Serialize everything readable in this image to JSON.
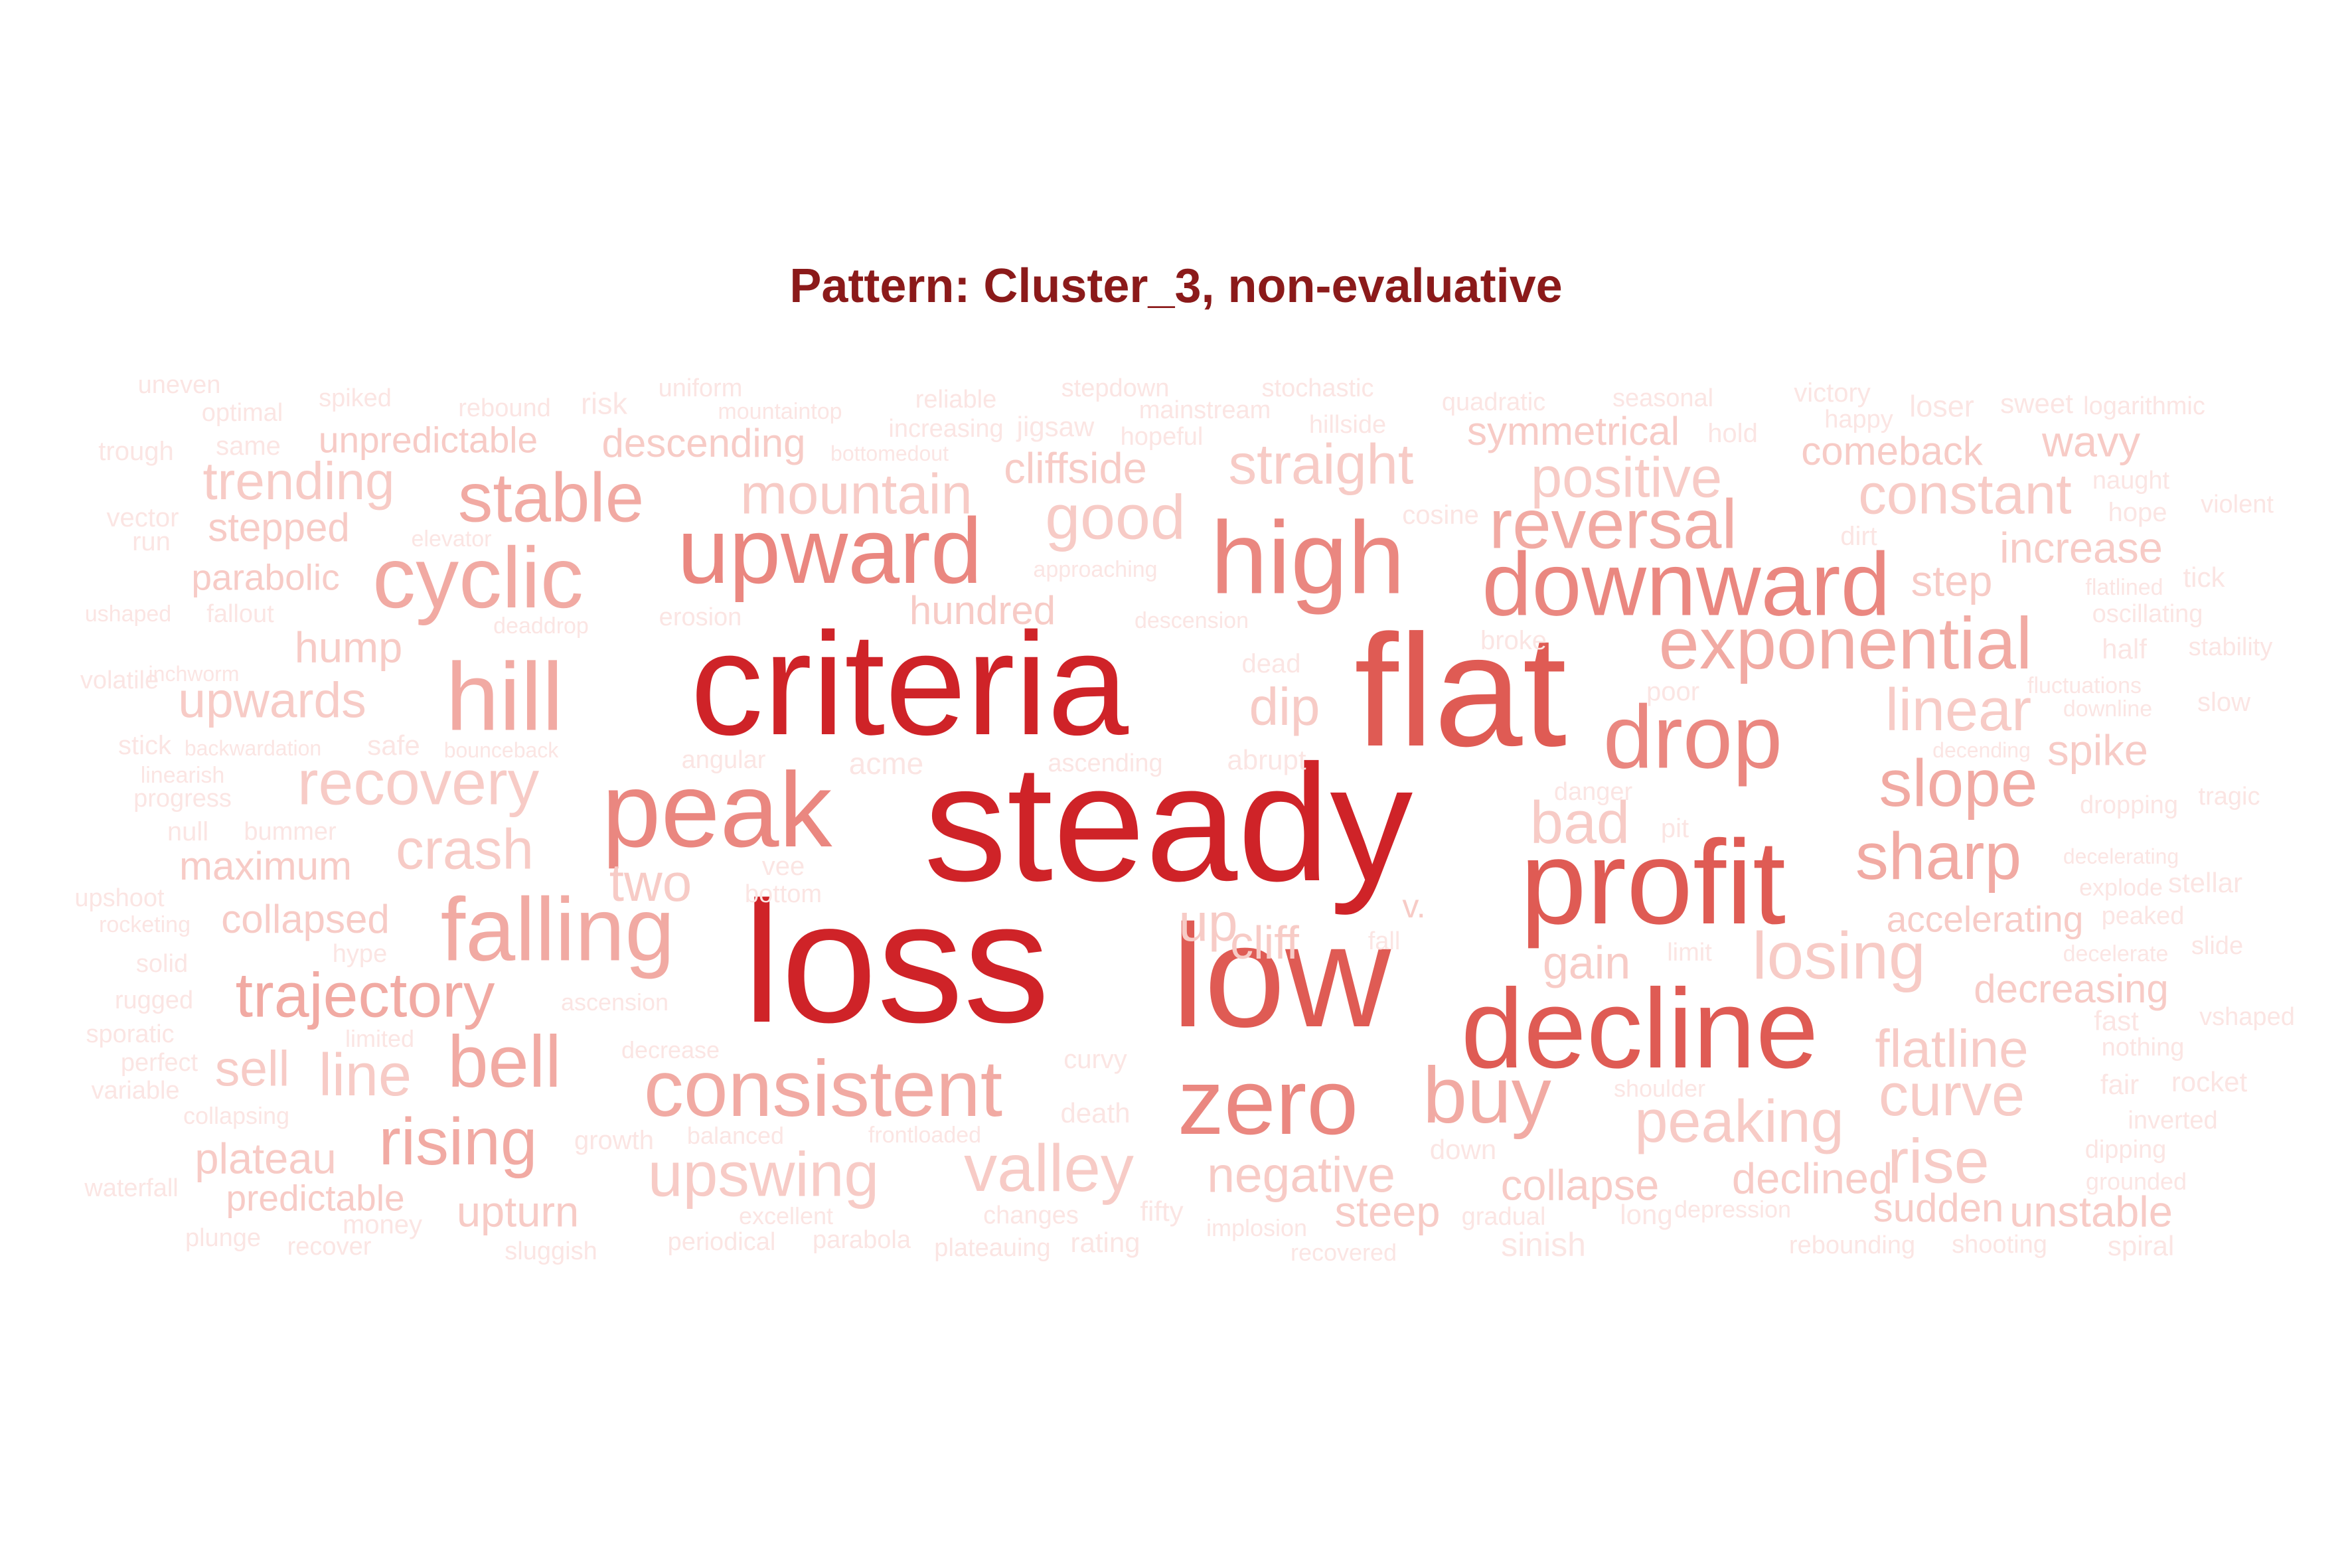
{
  "title": "Pattern: Cluster_3, non-evaluative",
  "colors": {
    "title": "#8b1a1a",
    "ramp": [
      "#fbe5e3",
      "#f7cbc6",
      "#f1aaa3",
      "#ea8780",
      "#df5b54",
      "#cf2328"
    ]
  },
  "words": [
    {
      "text": "steady",
      "w": 100
    },
    {
      "text": "loss",
      "w": 95
    },
    {
      "text": "criteria",
      "w": 92
    },
    {
      "text": "flat",
      "w": 88
    },
    {
      "text": "low",
      "w": 80
    },
    {
      "text": "profit",
      "w": 72
    },
    {
      "text": "decline",
      "w": 72
    },
    {
      "text": "high",
      "w": 66
    },
    {
      "text": "downward",
      "w": 64
    },
    {
      "text": "drop",
      "w": 62
    },
    {
      "text": "peak",
      "w": 62
    },
    {
      "text": "upward",
      "w": 58
    },
    {
      "text": "zero",
      "w": 56
    },
    {
      "text": "falling",
      "w": 54
    },
    {
      "text": "hill",
      "w": 50
    },
    {
      "text": "consistent",
      "w": 48
    },
    {
      "text": "cyclic",
      "w": 48
    },
    {
      "text": "buy",
      "w": 46
    },
    {
      "text": "exponential",
      "w": 44
    },
    {
      "text": "reversal",
      "w": 42
    },
    {
      "text": "bell",
      "w": 42
    },
    {
      "text": "trajectory",
      "w": 40
    },
    {
      "text": "slope",
      "w": 40
    },
    {
      "text": "rising",
      "w": 40
    },
    {
      "text": "sharp",
      "w": 40
    },
    {
      "text": "stable",
      "w": 40
    },
    {
      "text": "upswing",
      "w": 38
    },
    {
      "text": "valley",
      "w": 38
    },
    {
      "text": "losing",
      "w": 38
    },
    {
      "text": "peaking",
      "w": 36
    },
    {
      "text": "recovery",
      "w": 36
    },
    {
      "text": "curve",
      "w": 36
    },
    {
      "text": "rise",
      "w": 36
    },
    {
      "text": "linear",
      "w": 36
    },
    {
      "text": "bad",
      "w": 36
    },
    {
      "text": "straight",
      "w": 34
    },
    {
      "text": "good",
      "w": 34
    },
    {
      "text": "constant",
      "w": 34
    },
    {
      "text": "mountain",
      "w": 34
    },
    {
      "text": "flatline",
      "w": 34
    },
    {
      "text": "crash",
      "w": 34
    },
    {
      "text": "line",
      "w": 34
    },
    {
      "text": "positive",
      "w": 32
    },
    {
      "text": "negative",
      "w": 32
    },
    {
      "text": "trending",
      "w": 30
    },
    {
      "text": "dip",
      "w": 30
    },
    {
      "text": "cliff",
      "w": 30
    },
    {
      "text": "upwards",
      "w": 30
    },
    {
      "text": "two",
      "w": 30
    },
    {
      "text": "up",
      "w": 30
    },
    {
      "text": "sell",
      "w": 30
    },
    {
      "text": "gain",
      "w": 30
    },
    {
      "text": "collapse",
      "w": 28
    },
    {
      "text": "steep",
      "w": 28
    },
    {
      "text": "declined",
      "w": 28
    },
    {
      "text": "plateau",
      "w": 28
    },
    {
      "text": "upturn",
      "w": 28
    },
    {
      "text": "wavy",
      "w": 28
    },
    {
      "text": "comeback",
      "w": 28
    },
    {
      "text": "increase",
      "w": 28
    },
    {
      "text": "spike",
      "w": 28
    },
    {
      "text": "step",
      "w": 28
    },
    {
      "text": "hump",
      "w": 28
    },
    {
      "text": "unstable",
      "w": 28
    },
    {
      "text": "sudden",
      "w": 28
    },
    {
      "text": "decreasing",
      "w": 28
    },
    {
      "text": "hundred",
      "w": 28
    },
    {
      "text": "descending",
      "w": 28
    },
    {
      "text": "symmetrical",
      "w": 28
    },
    {
      "text": "cliffside",
      "w": 28
    },
    {
      "text": "stepped",
      "w": 28
    },
    {
      "text": "maximum",
      "w": 28
    },
    {
      "text": "collapsed",
      "w": 28
    },
    {
      "text": "accelerating",
      "w": 26
    },
    {
      "text": "predictable",
      "w": 26
    },
    {
      "text": "unpredictable",
      "w": 26
    },
    {
      "text": "parabolic",
      "w": 26
    },
    {
      "text": "v.",
      "w": 26
    },
    {
      "text": "sinish",
      "w": 22
    },
    {
      "text": "uneven",
      "w": 20
    },
    {
      "text": "optimal",
      "w": 20
    },
    {
      "text": "spiked",
      "w": 20
    },
    {
      "text": "rebound",
      "w": 20
    },
    {
      "text": "risk",
      "w": 22
    },
    {
      "text": "uniform",
      "w": 20
    },
    {
      "text": "mountaintop",
      "w": 18
    },
    {
      "text": "reliable",
      "w": 20
    },
    {
      "text": "stepdown",
      "w": 20
    },
    {
      "text": "stochastic",
      "w": 20
    },
    {
      "text": "mainstream",
      "w": 20
    },
    {
      "text": "hillside",
      "w": 20
    },
    {
      "text": "quadratic",
      "w": 20
    },
    {
      "text": "seasonal",
      "w": 20
    },
    {
      "text": "victory",
      "w": 20
    },
    {
      "text": "happy",
      "w": 20
    },
    {
      "text": "loser",
      "w": 22
    },
    {
      "text": "sweet",
      "w": 22
    },
    {
      "text": "logarithmic",
      "w": 20
    },
    {
      "text": "trough",
      "w": 20
    },
    {
      "text": "same",
      "w": 20
    },
    {
      "text": "increasing",
      "w": 20
    },
    {
      "text": "bottomedout",
      "w": 18
    },
    {
      "text": "jigsaw",
      "w": 22
    },
    {
      "text": "hopeful",
      "w": 20
    },
    {
      "text": "hold",
      "w": 20
    },
    {
      "text": "naught",
      "w": 20
    },
    {
      "text": "vector",
      "w": 20
    },
    {
      "text": "run",
      "w": 20
    },
    {
      "text": "elevator",
      "w": 18
    },
    {
      "text": "cosine",
      "w": 20
    },
    {
      "text": "dirt",
      "w": 20
    },
    {
      "text": "hope",
      "w": 20
    },
    {
      "text": "violent",
      "w": 20
    },
    {
      "text": "approaching",
      "w": 18
    },
    {
      "text": "flatlined",
      "w": 18
    },
    {
      "text": "tick",
      "w": 20
    },
    {
      "text": "ushaped",
      "w": 18
    },
    {
      "text": "fallout",
      "w": 20
    },
    {
      "text": "deaddrop",
      "w": 18
    },
    {
      "text": "erosion",
      "w": 20
    },
    {
      "text": "descension",
      "w": 18
    },
    {
      "text": "oscillating",
      "w": 20
    },
    {
      "text": "inchworm",
      "w": 18
    },
    {
      "text": "volatile",
      "w": 20
    },
    {
      "text": "broke",
      "w": 20
    },
    {
      "text": "dead",
      "w": 20
    },
    {
      "text": "half",
      "w": 22
    },
    {
      "text": "stability",
      "w": 20
    },
    {
      "text": "fluctuations",
      "w": 18
    },
    {
      "text": "poor",
      "w": 20
    },
    {
      "text": "downline",
      "w": 18
    },
    {
      "text": "slow",
      "w": 20
    },
    {
      "text": "stick",
      "w": 20
    },
    {
      "text": "backwardation",
      "w": 18
    },
    {
      "text": "safe",
      "w": 22
    },
    {
      "text": "bounceback",
      "w": 18
    },
    {
      "text": "ascending",
      "w": 20
    },
    {
      "text": "decending",
      "w": 18
    },
    {
      "text": "linearish",
      "w": 18
    },
    {
      "text": "angular",
      "w": 20
    },
    {
      "text": "acme",
      "w": 22
    },
    {
      "text": "abrupt",
      "w": 22
    },
    {
      "text": "progress",
      "w": 20
    },
    {
      "text": "danger",
      "w": 20
    },
    {
      "text": "tragic",
      "w": 20
    },
    {
      "text": "null",
      "w": 20
    },
    {
      "text": "bummer",
      "w": 20
    },
    {
      "text": "pit",
      "w": 20
    },
    {
      "text": "dropping",
      "w": 20
    },
    {
      "text": "vee",
      "w": 20
    },
    {
      "text": "decelerating",
      "w": 18
    },
    {
      "text": "upshoot",
      "w": 20
    },
    {
      "text": "bottom",
      "w": 20
    },
    {
      "text": "explode",
      "w": 20
    },
    {
      "text": "stellar",
      "w": 20
    },
    {
      "text": "rocketing",
      "w": 18
    },
    {
      "text": "peaked",
      "w": 20
    },
    {
      "text": "solid",
      "w": 20
    },
    {
      "text": "hype",
      "w": 20
    },
    {
      "text": "fall",
      "w": 20
    },
    {
      "text": "limit",
      "w": 20
    },
    {
      "text": "decelerate",
      "w": 18
    },
    {
      "text": "slide",
      "w": 20
    },
    {
      "text": "rugged",
      "w": 20
    },
    {
      "text": "ascension",
      "w": 20
    },
    {
      "text": "fast",
      "w": 22
    },
    {
      "text": "sporatic",
      "w": 20
    },
    {
      "text": "limited",
      "w": 20
    },
    {
      "text": "decrease",
      "w": 20
    },
    {
      "text": "vshaped",
      "w": 20
    },
    {
      "text": "nothing",
      "w": 20
    },
    {
      "text": "perfect",
      "w": 20
    },
    {
      "text": "curvy",
      "w": 22
    },
    {
      "text": "variable",
      "w": 20
    },
    {
      "text": "shoulder",
      "w": 20
    },
    {
      "text": "fair",
      "w": 22
    },
    {
      "text": "rocket",
      "w": 22
    },
    {
      "text": "collapsing",
      "w": 20
    },
    {
      "text": "balanced",
      "w": 20
    },
    {
      "text": "frontloaded",
      "w": 18
    },
    {
      "text": "death",
      "w": 22
    },
    {
      "text": "inverted",
      "w": 20
    },
    {
      "text": "growth",
      "w": 22
    },
    {
      "text": "down",
      "w": 22
    },
    {
      "text": "dipping",
      "w": 20
    },
    {
      "text": "waterfall",
      "w": 20
    },
    {
      "text": "long",
      "w": 22
    },
    {
      "text": "grounded",
      "w": 20
    },
    {
      "text": "excellent",
      "w": 20
    },
    {
      "text": "changes",
      "w": 20
    },
    {
      "text": "fifty",
      "w": 22
    },
    {
      "text": "gradual",
      "w": 20
    },
    {
      "text": "depression",
      "w": 20
    },
    {
      "text": "money",
      "w": 22
    },
    {
      "text": "implosion",
      "w": 20
    },
    {
      "text": "plunge",
      "w": 20
    },
    {
      "text": "recover",
      "w": 20
    },
    {
      "text": "periodical",
      "w": 20
    },
    {
      "text": "parabola",
      "w": 20
    },
    {
      "text": "rating",
      "w": 22
    },
    {
      "text": "rebounding",
      "w": 20
    },
    {
      "text": "shooting",
      "w": 20
    },
    {
      "text": "spiral",
      "w": 22
    },
    {
      "text": "sluggish",
      "w": 20
    },
    {
      "text": "plateauing",
      "w": 20
    },
    {
      "text": "recovered",
      "w": 20
    }
  ]
}
